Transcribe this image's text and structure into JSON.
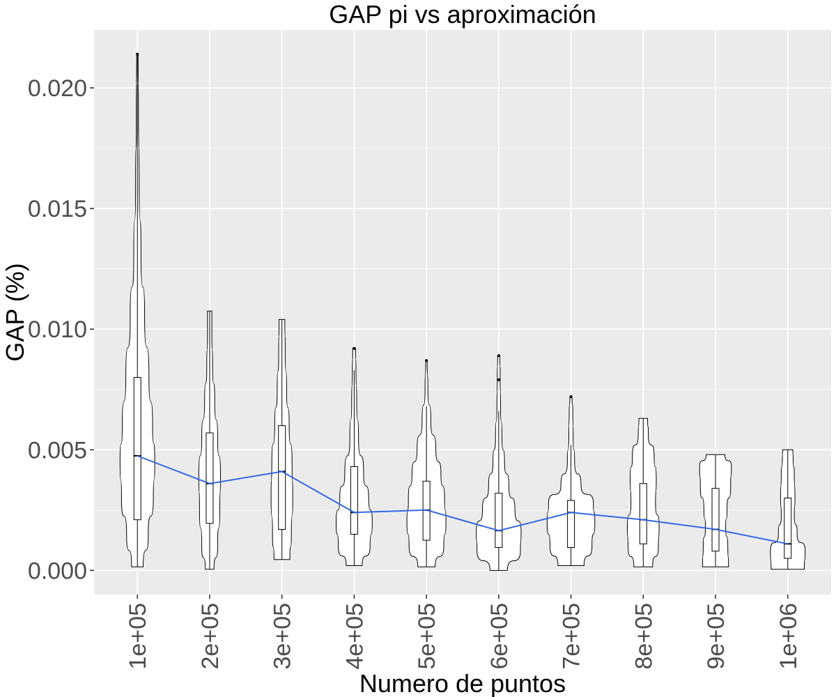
{
  "chart_data": {
    "type": "violin",
    "title": "GAP pi vs aproximación",
    "xlabel": "Numero de puntos",
    "ylabel": "GAP (%)",
    "ylim": [
      -0.001,
      0.0224
    ],
    "yticks": [
      0.0,
      0.005,
      0.01,
      0.015,
      0.02
    ],
    "ytick_labels": [
      "0.000",
      "0.005",
      "0.010",
      "0.015",
      "0.020"
    ],
    "grid": true,
    "categories": [
      "1e+05",
      "2e+05",
      "3e+05",
      "4e+05",
      "5e+05",
      "6e+05",
      "7e+05",
      "8e+05",
      "9e+05",
      "1e+06"
    ],
    "groups": [
      {
        "min": 0.00015,
        "q1": 0.0021,
        "median": 0.00475,
        "q3": 0.008,
        "max": 0.0214,
        "whisker_hi": 0.0214,
        "outliers": [
          0.0214
        ],
        "density": [
          [
            0.00015,
            0.16
          ],
          [
            0.0015,
            0.3
          ],
          [
            0.003,
            0.44
          ],
          [
            0.0045,
            0.48
          ],
          [
            0.006,
            0.42
          ],
          [
            0.008,
            0.32
          ],
          [
            0.0105,
            0.2
          ],
          [
            0.013,
            0.1
          ],
          [
            0.016,
            0.05
          ],
          [
            0.019,
            0.03
          ],
          [
            0.0214,
            0.02
          ]
        ]
      },
      {
        "min": 5e-05,
        "q1": 0.00195,
        "median": 0.0036,
        "q3": 0.0057,
        "max": 0.01075,
        "whisker_hi": 0.01075,
        "outliers": [],
        "density": [
          [
            5e-05,
            0.12
          ],
          [
            0.001,
            0.22
          ],
          [
            0.0025,
            0.28
          ],
          [
            0.004,
            0.3
          ],
          [
            0.0055,
            0.22
          ],
          [
            0.007,
            0.14
          ],
          [
            0.0085,
            0.08
          ],
          [
            0.0098,
            0.06
          ],
          [
            0.01075,
            0.06
          ]
        ]
      },
      {
        "min": 0.00045,
        "q1": 0.0017,
        "median": 0.0041,
        "q3": 0.006,
        "max": 0.0104,
        "whisker_hi": 0.0104,
        "outliers": [],
        "density": [
          [
            0.00045,
            0.22
          ],
          [
            0.0015,
            0.26
          ],
          [
            0.003,
            0.3
          ],
          [
            0.0045,
            0.28
          ],
          [
            0.006,
            0.2
          ],
          [
            0.0075,
            0.13
          ],
          [
            0.009,
            0.09
          ],
          [
            0.0104,
            0.08
          ]
        ]
      },
      {
        "min": 0.0002,
        "q1": 0.0015,
        "median": 0.0024,
        "q3": 0.0043,
        "max": 0.0092,
        "whisker_hi": 0.0083,
        "outliers": [
          0.0092
        ],
        "density": [
          [
            0.0002,
            0.22
          ],
          [
            0.001,
            0.44
          ],
          [
            0.002,
            0.5
          ],
          [
            0.003,
            0.4
          ],
          [
            0.004,
            0.26
          ],
          [
            0.0055,
            0.12
          ],
          [
            0.007,
            0.07
          ],
          [
            0.0083,
            0.05
          ],
          [
            0.0092,
            0.04
          ]
        ]
      },
      {
        "min": 0.00015,
        "q1": 0.00125,
        "median": 0.0025,
        "q3": 0.0037,
        "max": 0.0087,
        "whisker_hi": 0.0068,
        "outliers": [
          0.0087
        ],
        "density": [
          [
            0.00015,
            0.24
          ],
          [
            0.001,
            0.48
          ],
          [
            0.002,
            0.54
          ],
          [
            0.003,
            0.5
          ],
          [
            0.004,
            0.4
          ],
          [
            0.005,
            0.26
          ],
          [
            0.0062,
            0.12
          ],
          [
            0.0075,
            0.04
          ],
          [
            0.0087,
            0.02
          ]
        ]
      },
      {
        "min": 0.0,
        "q1": 0.00095,
        "median": 0.00165,
        "q3": 0.0032,
        "max": 0.0089,
        "whisker_hi": 0.0066,
        "outliers": [
          0.0089,
          0.0079
        ],
        "density": [
          [
            0.0,
            0.24
          ],
          [
            0.0008,
            0.6
          ],
          [
            0.0016,
            0.62
          ],
          [
            0.0025,
            0.45
          ],
          [
            0.0035,
            0.28
          ],
          [
            0.0045,
            0.16
          ],
          [
            0.0055,
            0.09
          ],
          [
            0.0068,
            0.05
          ],
          [
            0.008,
            0.04
          ],
          [
            0.0089,
            0.03
          ]
        ]
      },
      {
        "min": 0.0002,
        "q1": 0.00095,
        "median": 0.0024,
        "q3": 0.0029,
        "max": 0.0072,
        "whisker_hi": 0.0052,
        "outliers": [
          0.0072
        ],
        "density": [
          [
            0.0002,
            0.36
          ],
          [
            0.001,
            0.58
          ],
          [
            0.002,
            0.66
          ],
          [
            0.0028,
            0.62
          ],
          [
            0.0035,
            0.28
          ],
          [
            0.0045,
            0.1
          ],
          [
            0.0055,
            0.06
          ],
          [
            0.0065,
            0.05
          ],
          [
            0.0072,
            0.03
          ]
        ]
      },
      {
        "min": 0.00015,
        "q1": 0.0011,
        "median": 0.0021,
        "q3": 0.0036,
        "max": 0.0063,
        "whisker_hi": 0.0063,
        "outliers": [],
        "density": [
          [
            0.00015,
            0.26
          ],
          [
            0.001,
            0.42
          ],
          [
            0.0018,
            0.44
          ],
          [
            0.0028,
            0.34
          ],
          [
            0.0038,
            0.36
          ],
          [
            0.0048,
            0.3
          ],
          [
            0.0056,
            0.14
          ],
          [
            0.0063,
            0.12
          ]
        ]
      },
      {
        "min": 0.00015,
        "q1": 0.0008,
        "median": 0.0017,
        "q3": 0.0034,
        "max": 0.0048,
        "whisker_hi": 0.0048,
        "outliers": [],
        "density": [
          [
            0.00015,
            0.36
          ],
          [
            0.001,
            0.34
          ],
          [
            0.0018,
            0.28
          ],
          [
            0.0025,
            0.32
          ],
          [
            0.0035,
            0.42
          ],
          [
            0.0043,
            0.44
          ],
          [
            0.0048,
            0.26
          ]
        ]
      },
      {
        "min": 5e-05,
        "q1": 0.0005,
        "median": 0.0011,
        "q3": 0.003,
        "max": 0.005,
        "whisker_hi": 0.005,
        "outliers": [],
        "density": [
          [
            5e-05,
            0.46
          ],
          [
            0.0008,
            0.48
          ],
          [
            0.0015,
            0.26
          ],
          [
            0.0023,
            0.18
          ],
          [
            0.003,
            0.2
          ],
          [
            0.004,
            0.18
          ],
          [
            0.0046,
            0.15
          ],
          [
            0.005,
            0.14
          ]
        ]
      }
    ],
    "trend_line": {
      "color": "#3366e6",
      "values": [
        0.00475,
        0.0036,
        0.0041,
        0.0024,
        0.0025,
        0.00165,
        0.0024,
        0.0021,
        0.0017,
        0.0011
      ]
    }
  }
}
